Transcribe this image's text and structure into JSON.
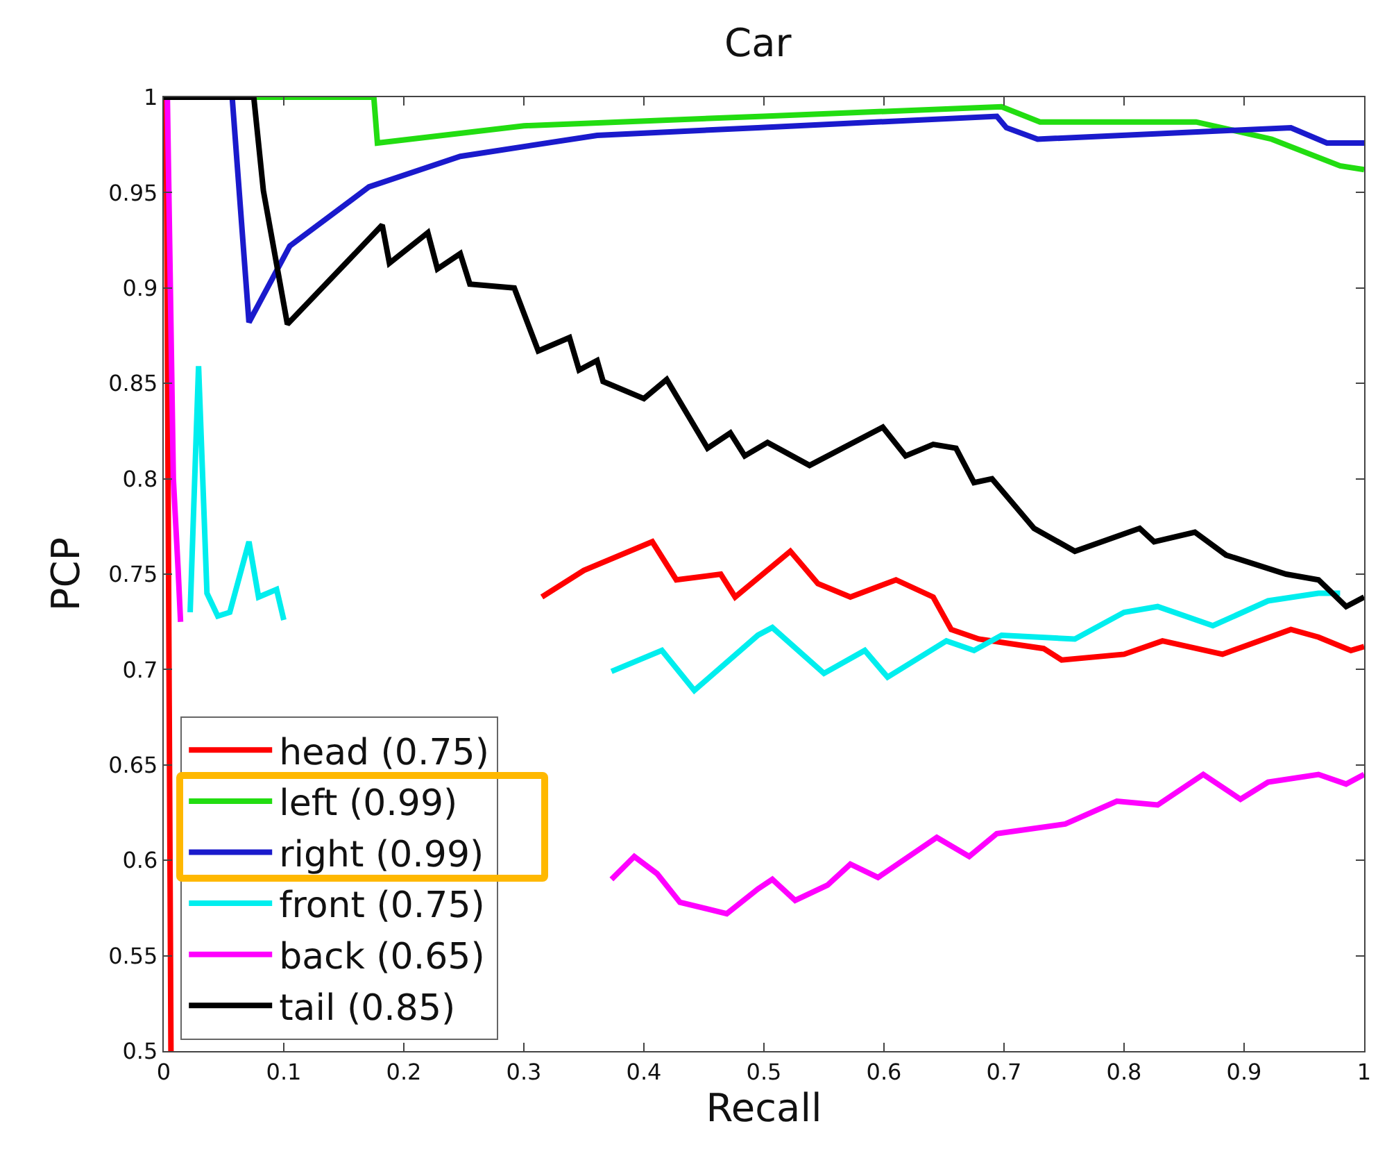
{
  "chart_data": {
    "type": "line",
    "title": "Car",
    "xlabel": "Recall",
    "ylabel": "PCP",
    "xlim": [
      0,
      1
    ],
    "xticks": [
      0,
      0.1,
      0.2,
      0.3,
      0.4,
      0.5,
      0.6,
      0.7,
      0.8,
      0.9,
      1
    ],
    "ylim": [
      0.5,
      1
    ],
    "yticks": [
      0.5,
      0.55,
      0.6,
      0.65,
      0.7,
      0.75,
      0.8,
      0.85,
      0.9,
      0.95,
      1
    ],
    "grid": false,
    "legend": "bottom left",
    "marker": "none",
    "line_style": "solid",
    "series": [
      {
        "name": "head (0.75)",
        "color": "#ff0000",
        "x": [
          0,
          0.002,
          0.006,
          0.3,
          0.315,
          0.35,
          0.407,
          0.427,
          0.464,
          0.476,
          0.522,
          0.545,
          0.572,
          0.61,
          0.641,
          0.656,
          0.679,
          0.733,
          0.748,
          0.8,
          0.832,
          0.882,
          0.939,
          0.962,
          0.989,
          1
        ],
        "values": [
          1,
          1,
          0.5,
          null,
          0.738,
          0.752,
          0.767,
          0.747,
          0.75,
          0.738,
          0.762,
          0.745,
          0.738,
          0.747,
          0.738,
          0.721,
          0.716,
          0.711,
          0.705,
          0.708,
          0.715,
          0.708,
          0.721,
          0.717,
          0.71,
          0.712
        ]
      },
      {
        "name": "left (0.99)",
        "color": "#22dd11",
        "x": [
          0,
          0.175,
          0.178,
          0.3,
          0.5,
          0.698,
          0.73,
          0.86,
          0.923,
          0.98,
          1
        ],
        "values": [
          1,
          1,
          0.976,
          0.985,
          0.99,
          0.995,
          0.987,
          0.987,
          0.978,
          0.964,
          0.962
        ]
      },
      {
        "name": "right (0.99)",
        "color": "#1a1acc",
        "x": [
          0,
          0.057,
          0.071,
          0.105,
          0.171,
          0.247,
          0.361,
          0.495,
          0.694,
          0.702,
          0.728,
          0.939,
          0.969,
          1
        ],
        "values": [
          1,
          1,
          0.882,
          0.922,
          0.953,
          0.969,
          0.98,
          0.984,
          0.99,
          0.984,
          0.978,
          0.984,
          0.976,
          0.976
        ]
      },
      {
        "name": "front (0.75)",
        "color": "#00eeee",
        "x": [
          0.022,
          0.029,
          0.036,
          0.045,
          0.055,
          0.071,
          0.079,
          0.094,
          0.1,
          0.2,
          0.373,
          0.415,
          0.442,
          0.495,
          0.507,
          0.55,
          0.584,
          0.603,
          0.652,
          0.675,
          0.698,
          0.759,
          0.8,
          0.828,
          0.874,
          0.92,
          0.962,
          0.98
        ],
        "values": [
          0.73,
          0.859,
          0.74,
          0.728,
          0.73,
          0.767,
          0.738,
          0.742,
          0.726,
          null,
          0.699,
          0.71,
          0.689,
          0.718,
          0.722,
          0.698,
          0.71,
          0.696,
          0.715,
          0.71,
          0.718,
          0.716,
          0.73,
          0.733,
          0.723,
          0.736,
          0.74,
          0.74
        ]
      },
      {
        "name": "back (0.65)",
        "color": "#ff00ff",
        "x": [
          0.003,
          0.008,
          0.012,
          0.014,
          0.2,
          0.373,
          0.392,
          0.411,
          0.43,
          0.469,
          0.495,
          0.507,
          0.526,
          0.553,
          0.572,
          0.595,
          0.644,
          0.671,
          0.694,
          0.751,
          0.794,
          0.828,
          0.866,
          0.897,
          0.92,
          0.962,
          0.985,
          1
        ],
        "values": [
          1,
          0.8,
          0.752,
          0.725,
          null,
          0.59,
          0.602,
          0.593,
          0.578,
          0.572,
          0.585,
          0.59,
          0.579,
          0.587,
          0.598,
          0.591,
          0.612,
          0.602,
          0.614,
          0.619,
          0.631,
          0.629,
          0.645,
          0.632,
          0.641,
          0.645,
          0.64,
          0.645
        ]
      },
      {
        "name": "tail (0.85)",
        "color": "#000000",
        "x": [
          0,
          0.075,
          0.083,
          0.103,
          0.182,
          0.188,
          0.22,
          0.228,
          0.247,
          0.255,
          0.292,
          0.312,
          0.338,
          0.346,
          0.361,
          0.366,
          0.4,
          0.419,
          0.453,
          0.472,
          0.484,
          0.503,
          0.538,
          0.599,
          0.618,
          0.641,
          0.66,
          0.675,
          0.69,
          0.725,
          0.759,
          0.813,
          0.825,
          0.859,
          0.885,
          0.935,
          0.962,
          0.985,
          1
        ],
        "values": [
          1,
          1,
          0.951,
          0.881,
          0.933,
          0.913,
          0.929,
          0.91,
          0.918,
          0.902,
          0.9,
          0.867,
          0.874,
          0.857,
          0.862,
          0.851,
          0.842,
          0.852,
          0.816,
          0.824,
          0.812,
          0.819,
          0.807,
          0.827,
          0.812,
          0.818,
          0.816,
          0.798,
          0.8,
          0.774,
          0.762,
          0.774,
          0.767,
          0.772,
          0.76,
          0.75,
          0.747,
          0.733,
          0.738
        ]
      }
    ]
  }
}
